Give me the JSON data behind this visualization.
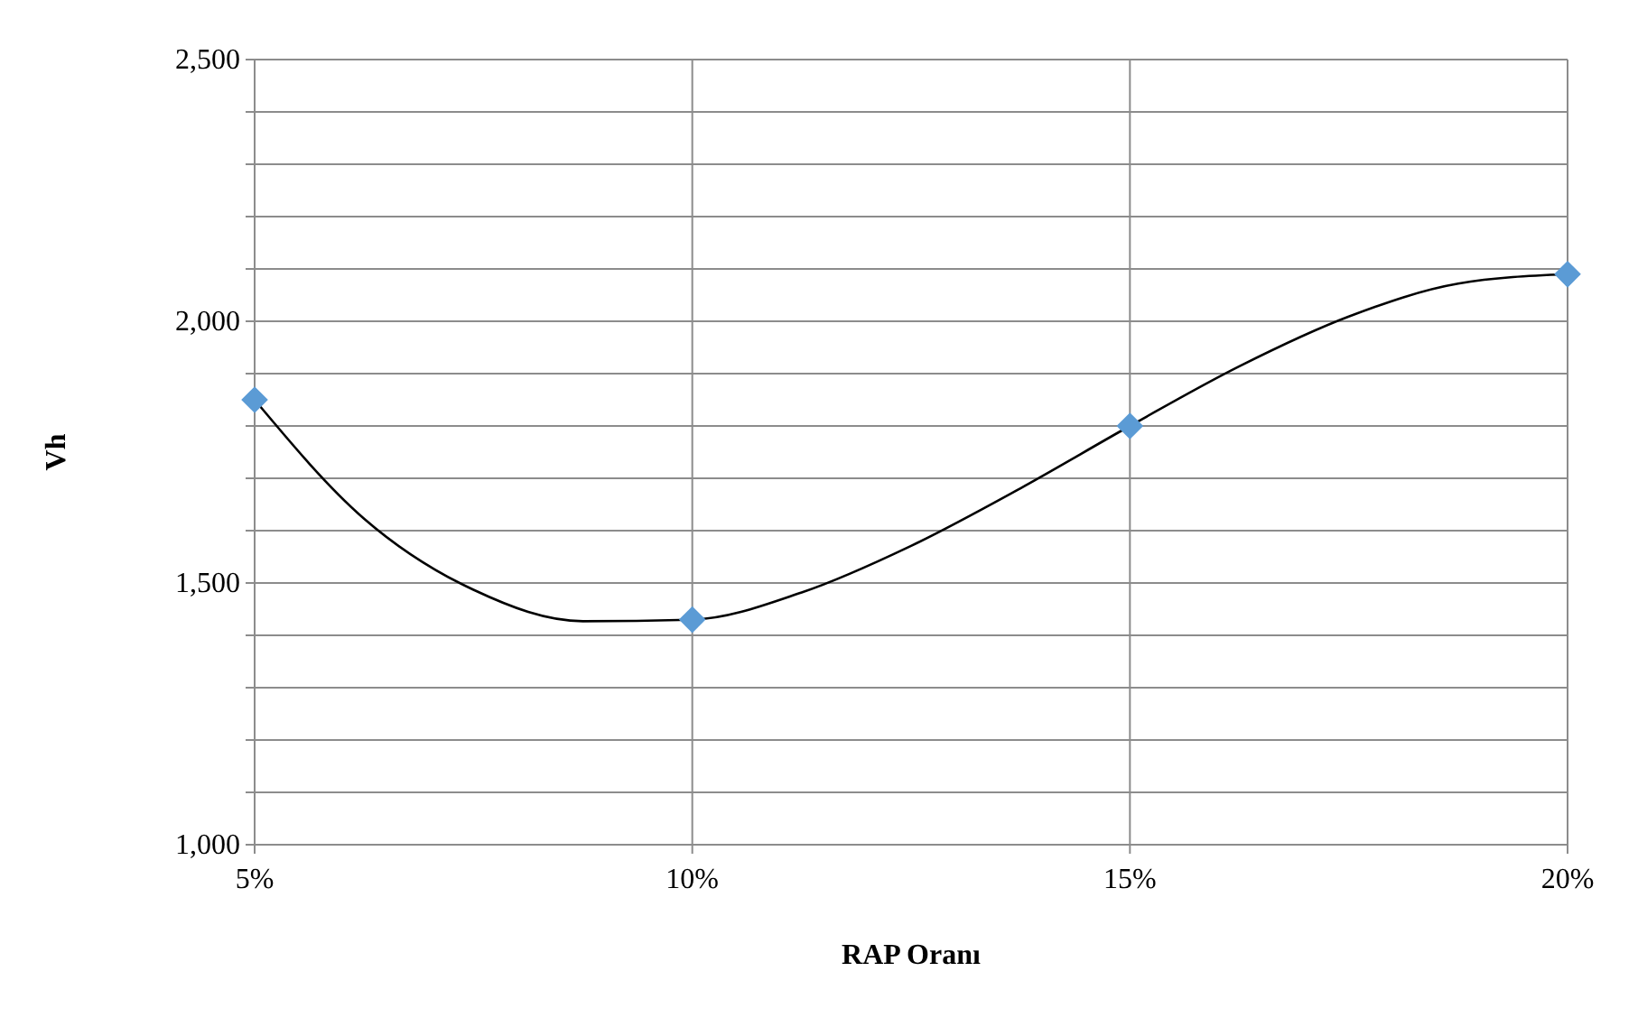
{
  "chart_data": {
    "type": "scatter",
    "xlabel": "RAP Oranı",
    "ylabel": "Vh",
    "xlim": [
      5,
      20
    ],
    "xticks": [
      {
        "value": 5,
        "label": "5%"
      },
      {
        "value": 10,
        "label": "10%"
      },
      {
        "value": 15,
        "label": "15%"
      },
      {
        "value": 20,
        "label": "20%"
      }
    ],
    "ylim": [
      1000,
      2500
    ],
    "yticks": [
      {
        "value": 1000,
        "label": "1,000"
      },
      {
        "value": 1100,
        "label": null
      },
      {
        "value": 1200,
        "label": null
      },
      {
        "value": 1300,
        "label": null
      },
      {
        "value": 1400,
        "label": null
      },
      {
        "value": 1500,
        "label": "1,500"
      },
      {
        "value": 1600,
        "label": null
      },
      {
        "value": 1700,
        "label": null
      },
      {
        "value": 1800,
        "label": null
      },
      {
        "value": 1900,
        "label": null
      },
      {
        "value": 2000,
        "label": "2,000"
      },
      {
        "value": 2100,
        "label": null
      },
      {
        "value": 2200,
        "label": null
      },
      {
        "value": 2300,
        "label": null
      },
      {
        "value": 2400,
        "label": null
      },
      {
        "value": 2500,
        "label": "2,500"
      }
    ],
    "grid": true,
    "series": [
      {
        "type": "line",
        "color": "#000000",
        "marker": "none",
        "x": [
          5,
          6.25,
          7.5,
          8.75,
          10,
          11.25,
          12.5,
          13.75,
          15,
          16.25,
          17.5,
          18.75,
          20
        ],
        "values": [
          1850,
          1623,
          1487,
          1427,
          1430,
          1482,
          1571,
          1681,
          1800,
          1914,
          2009,
          2072,
          2090
        ]
      },
      {
        "color": "#5b9bd5",
        "marker": "diamond",
        "x": [
          5,
          10,
          15,
          20
        ],
        "values": [
          1850,
          1430,
          1800,
          2090
        ]
      }
    ]
  }
}
